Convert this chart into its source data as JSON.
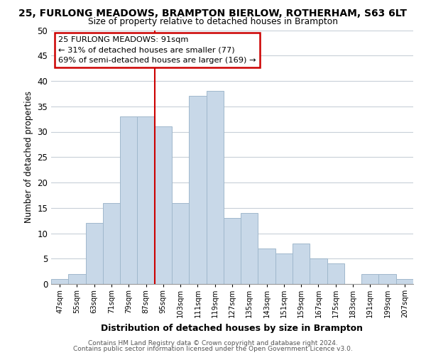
{
  "title_line1": "25, FURLONG MEADOWS, BRAMPTON BIERLOW, ROTHERHAM, S63 6LT",
  "title_line2": "Size of property relative to detached houses in Brampton",
  "xlabel": "Distribution of detached houses by size in Brampton",
  "ylabel": "Number of detached properties",
  "bin_labels": [
    "47sqm",
    "55sqm",
    "63sqm",
    "71sqm",
    "79sqm",
    "87sqm",
    "95sqm",
    "103sqm",
    "111sqm",
    "119sqm",
    "127sqm",
    "135sqm",
    "143sqm",
    "151sqm",
    "159sqm",
    "167sqm",
    "175sqm",
    "183sqm",
    "191sqm",
    "199sqm",
    "207sqm"
  ],
  "bar_values": [
    1,
    2,
    12,
    16,
    33,
    33,
    31,
    16,
    37,
    38,
    13,
    14,
    7,
    6,
    8,
    5,
    4,
    0,
    2,
    2,
    1
  ],
  "bar_color": "#c8d8e8",
  "bar_edge_color": "#a0b8cc",
  "ref_line_x": 5.5,
  "ref_line_color": "#cc0000",
  "ylim": [
    0,
    50
  ],
  "yticks": [
    0,
    5,
    10,
    15,
    20,
    25,
    30,
    35,
    40,
    45,
    50
  ],
  "annotation_title": "25 FURLONG MEADOWS: 91sqm",
  "annotation_line1": "← 31% of detached houses are smaller (77)",
  "annotation_line2": "69% of semi-detached houses are larger (169) →",
  "annotation_box_color": "#ffffff",
  "annotation_box_edge": "#cc0000",
  "footer_line1": "Contains HM Land Registry data © Crown copyright and database right 2024.",
  "footer_line2": "Contains public sector information licensed under the Open Government Licence v3.0.",
  "background_color": "#ffffff",
  "grid_color": "#c8d0d8"
}
